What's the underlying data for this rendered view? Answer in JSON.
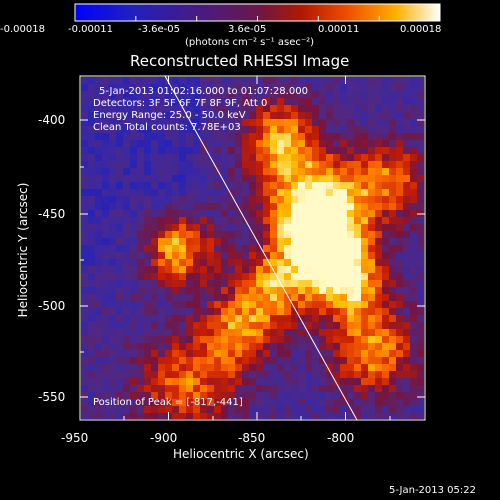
{
  "colorbar": {
    "tick_labels": [
      "-0.00018",
      "-0.00011",
      "-3.6e-05",
      "3.6e-05",
      "0.00011",
      "0.00018"
    ],
    "units_text": "(photons cm⁻² s⁻¹ asec⁻²)",
    "colors": [
      "#0000ff",
      "#3a1a88",
      "#5a1e7a",
      "#8a1530",
      "#d42a00",
      "#ff8800",
      "#ffe000",
      "#ffffff"
    ]
  },
  "plot": {
    "title": "Reconstructed RHESSI Image",
    "xlabel": "Heliocentric X (arcsec)",
    "ylabel": "Heliocentric Y (arcsec)",
    "xticks": [
      "-950",
      "-900",
      "-850",
      "-800"
    ],
    "yticks": [
      "-400",
      "-450",
      "-500",
      "-550"
    ]
  },
  "overlay": {
    "time_range": "5-Jan-2013 01:02:16.000 to 01:07:28.000",
    "detectors": "Detectors: 3F 5F 6F 7F 8F 9F, Att 0",
    "energy": "Energy Range: 25.0 - 50.0 keV",
    "clean": "Clean     Total counts: 7.78E+03",
    "peak": "Position of Peak = [-817,-441]"
  },
  "footer": {
    "date": "5-Jan-2013 05:22"
  }
}
